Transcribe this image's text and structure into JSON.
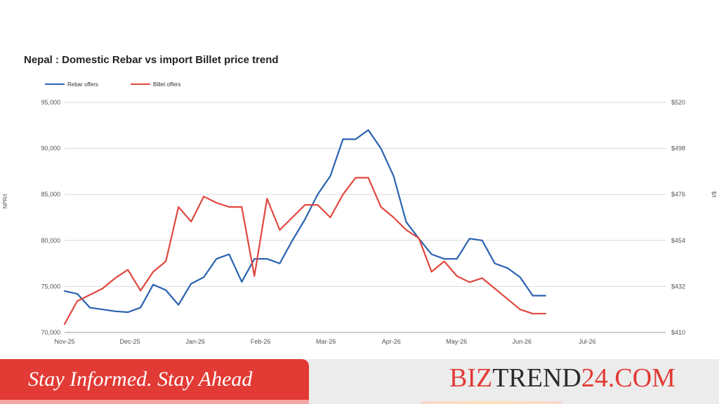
{
  "chart_data": {
    "type": "line",
    "title": "Nepal : Domestic Rebar vs import Billet price trend",
    "ylabel_left": "NPR/t",
    "ylabel_right": "$/t",
    "ylim_left": [
      70000,
      95000
    ],
    "ylim_right": [
      410,
      520
    ],
    "yticks_left": [
      "70,000",
      "75,000",
      "80,000",
      "85,000",
      "90,000",
      "95,000"
    ],
    "yticks_right": [
      "$410",
      "$432",
      "$454",
      "$476",
      "$498",
      "$520"
    ],
    "x_ticks": [
      "Nov-25",
      "Dec-25",
      "Jan-26",
      "Feb-26",
      "Mar-26",
      "Apr-26",
      "May-26",
      "Jun-26",
      "Jul-26"
    ],
    "x_tick_index": [
      0,
      5,
      10,
      15,
      20,
      25,
      30,
      35,
      40
    ],
    "x_count": 47,
    "legend": "top-left",
    "grid": true,
    "series": [
      {
        "name": "Rebar offers",
        "axis": "left",
        "color": "#2a62b0",
        "values": [
          74500,
          74200,
          72700,
          72500,
          72300,
          72200,
          72700,
          75200,
          74600,
          73000,
          75300,
          76000,
          78000,
          78500,
          75500,
          78000,
          78000,
          77500,
          80000,
          82300,
          85000,
          87000,
          91000,
          91000,
          92000,
          90000,
          87000,
          82000,
          80200,
          78500,
          78000,
          78000,
          80200,
          80000,
          77500,
          77000,
          76000,
          74000,
          74000
        ]
      },
      {
        "name": "Billet offers",
        "axis": "right",
        "color": "#e0483f",
        "values": [
          414,
          425,
          428,
          431,
          436,
          440,
          430,
          439,
          444,
          470,
          463,
          475,
          472,
          470,
          470,
          437,
          474,
          459,
          465,
          471,
          471,
          465,
          476,
          484,
          484,
          470,
          465,
          459,
          455,
          439,
          444,
          437,
          434,
          436,
          431,
          426,
          421,
          419,
          419
        ]
      }
    ]
  },
  "footer": {
    "banner_text": "Stay Informed. Stay Ahead",
    "brand_part1": "BIZ",
    "brand_part2": "TREND",
    "brand_part3": "24.COM"
  },
  "colors": {
    "rebar": "#2a62b0",
    "billet": "#e0483f",
    "banner": "#e23a34",
    "grid": "#d9d9d9"
  }
}
